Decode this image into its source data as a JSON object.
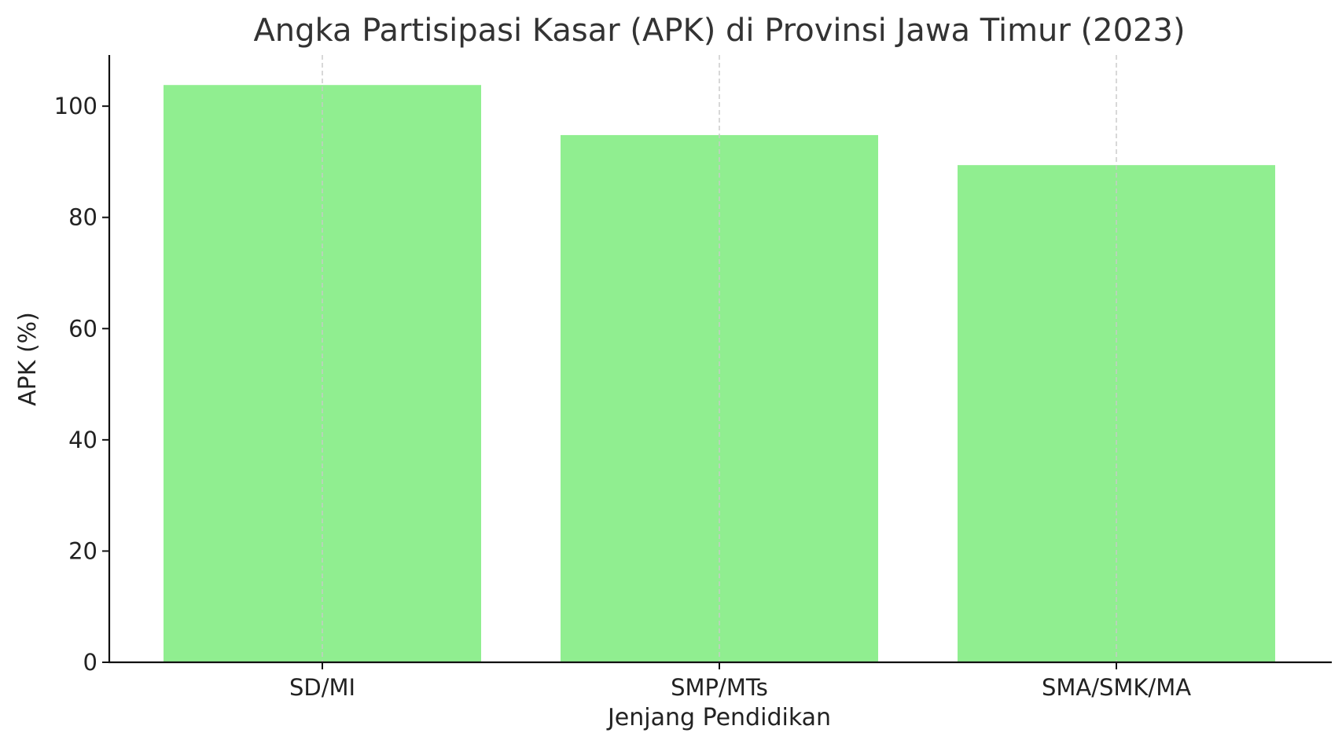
{
  "chart_data": {
    "type": "bar",
    "title": "Angka Partisipasi Kasar (APK) di Provinsi Jawa Timur (2023)",
    "xlabel": "Jenjang Pendidikan",
    "ylabel": "APK (%)",
    "categories": [
      "SD/MI",
      "SMP/MTs",
      "SMA/SMK/MA"
    ],
    "values": [
      103.8,
      94.8,
      89.4
    ],
    "ylim": [
      0,
      109.2
    ],
    "yticks": [
      0,
      20,
      40,
      60,
      80,
      100
    ],
    "bar_color": "#90ee90",
    "grid": "x-only, dashed",
    "legend": "none"
  }
}
